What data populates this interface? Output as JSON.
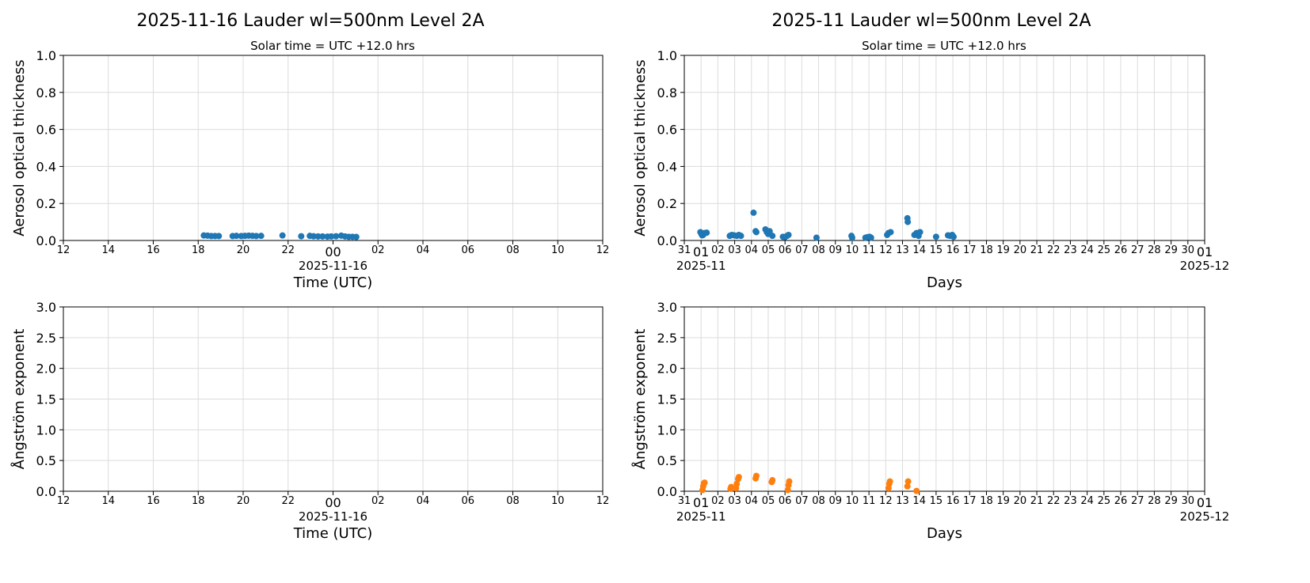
{
  "chart_data": [
    {
      "type": "scatter",
      "title": "2025-11-16  Lauder  wl=500nm  Level 2A",
      "subtitle": "Solar time = UTC +12.0 hrs",
      "xlabel": "Time (UTC)",
      "ylabel": "Aerosol optical thickness",
      "xlim": [
        "2025-11-15 12:00",
        "2025-11-16 12:00"
      ],
      "ylim": [
        0,
        1.0
      ],
      "yticks": [
        "0.0",
        "0.2",
        "0.4",
        "0.6",
        "0.8",
        "1.0"
      ],
      "xticklabels": [
        "12",
        "14",
        "16",
        "18",
        "20",
        "22",
        "00",
        "02",
        "04",
        "06",
        "08",
        "10",
        "12"
      ],
      "xdate_label": "2025-11-16",
      "grid": true,
      "color": "#1f77b4",
      "points": [
        [
          "2025-11-15 18:15",
          0.027
        ],
        [
          "2025-11-15 18:25",
          0.026
        ],
        [
          "2025-11-15 18:35",
          0.024
        ],
        [
          "2025-11-15 18:45",
          0.024
        ],
        [
          "2025-11-15 18:55",
          0.024
        ],
        [
          "2025-11-15 19:32",
          0.024
        ],
        [
          "2025-11-15 19:42",
          0.025
        ],
        [
          "2025-11-15 19:55",
          0.024
        ],
        [
          "2025-11-15 20:05",
          0.025
        ],
        [
          "2025-11-15 20:15",
          0.026
        ],
        [
          "2025-11-15 20:25",
          0.025
        ],
        [
          "2025-11-15 20:35",
          0.024
        ],
        [
          "2025-11-15 20:48",
          0.025
        ],
        [
          "2025-11-15 21:45",
          0.027
        ],
        [
          "2025-11-15 22:35",
          0.023
        ],
        [
          "2025-11-15 22:58",
          0.025
        ],
        [
          "2025-11-15 23:08",
          0.023
        ],
        [
          "2025-11-15 23:20",
          0.022
        ],
        [
          "2025-11-15 23:32",
          0.022
        ],
        [
          "2025-11-15 23:45",
          0.021
        ],
        [
          "2025-11-15 23:55",
          0.022
        ],
        [
          "2025-11-16 00:08",
          0.023
        ],
        [
          "2025-11-16 00:22",
          0.026
        ],
        [
          "2025-11-16 00:32",
          0.022
        ],
        [
          "2025-11-16 00:42",
          0.02
        ],
        [
          "2025-11-16 00:52",
          0.02
        ],
        [
          "2025-11-16 01:02",
          0.019
        ]
      ]
    },
    {
      "type": "scatter",
      "title": "2025-11  Lauder  wl=500nm  Level 2A",
      "subtitle": "Solar time = UTC +12.0 hrs",
      "xlabel": "Days",
      "ylabel": "Aerosol optical thickness",
      "xlim": [
        "2025-10-31 00:00",
        "2025-12-01 00:00"
      ],
      "ylim": [
        0,
        1.0
      ],
      "yticks": [
        "0.0",
        "0.2",
        "0.4",
        "0.6",
        "0.8",
        "1.0"
      ],
      "xticklabels": [
        "31",
        "01",
        "02",
        "03",
        "04",
        "05",
        "06",
        "07",
        "08",
        "09",
        "10",
        "11",
        "12",
        "13",
        "14",
        "15",
        "16",
        "17",
        "18",
        "19",
        "20",
        "21",
        "22",
        "23",
        "24",
        "25",
        "26",
        "27",
        "28",
        "29",
        "30",
        "01"
      ],
      "xmonth_labels": [
        "2025-11",
        "2025-12"
      ],
      "grid": true,
      "color": "#1f77b4",
      "points": [
        [
          "2025-10-31 23:00",
          0.045
        ],
        [
          "2025-11-01 00:30",
          0.035
        ],
        [
          "2025-11-01 01:30",
          0.028
        ],
        [
          "2025-11-01 03:00",
          0.03
        ],
        [
          "2025-11-01 05:00",
          0.04
        ],
        [
          "2025-11-01 08:00",
          0.042
        ],
        [
          "2025-11-02 17:00",
          0.025
        ],
        [
          "2025-11-02 20:00",
          0.03
        ],
        [
          "2025-11-02 23:00",
          0.028
        ],
        [
          "2025-11-03 03:00",
          0.025
        ],
        [
          "2025-11-03 06:00",
          0.03
        ],
        [
          "2025-11-03 09:00",
          0.025
        ],
        [
          "2025-11-04 03:00",
          0.15
        ],
        [
          "2025-11-04 06:00",
          0.05
        ],
        [
          "2025-11-04 07:00",
          0.045
        ],
        [
          "2025-11-04 20:00",
          0.06
        ],
        [
          "2025-11-04 22:00",
          0.045
        ],
        [
          "2025-11-05 00:00",
          0.035
        ],
        [
          "2025-11-05 02:00",
          0.05
        ],
        [
          "2025-11-05 06:00",
          0.025
        ],
        [
          "2025-11-05 21:00",
          0.02
        ],
        [
          "2025-11-06 00:00",
          0.018
        ],
        [
          "2025-11-06 03:00",
          0.025
        ],
        [
          "2025-11-06 05:00",
          0.03
        ],
        [
          "2025-11-07 21:00",
          0.015
        ],
        [
          "2025-11-09 23:00",
          0.025
        ],
        [
          "2025-11-10 00:00",
          0.015
        ],
        [
          "2025-11-10 19:00",
          0.015
        ],
        [
          "2025-11-10 22:00",
          0.018
        ],
        [
          "2025-11-11 01:00",
          0.02
        ],
        [
          "2025-11-11 03:00",
          0.015
        ],
        [
          "2025-11-12 02:00",
          0.03
        ],
        [
          "2025-11-12 04:00",
          0.04
        ],
        [
          "2025-11-12 07:00",
          0.045
        ],
        [
          "2025-11-13 07:00",
          0.12
        ],
        [
          "2025-11-13 07:30",
          0.1
        ],
        [
          "2025-11-13 17:00",
          0.03
        ],
        [
          "2025-11-13 20:00",
          0.04
        ],
        [
          "2025-11-13 23:00",
          0.025
        ],
        [
          "2025-11-14 01:00",
          0.045
        ],
        [
          "2025-11-15 00:00",
          0.02
        ],
        [
          "2025-11-15 17:00",
          0.028
        ],
        [
          "2025-11-15 20:00",
          0.025
        ],
        [
          "2025-11-15 23:00",
          0.03
        ],
        [
          "2025-11-16 01:00",
          0.02
        ]
      ]
    },
    {
      "type": "scatter",
      "xlabel": "Time (UTC)",
      "ylabel": "Ångström exponent",
      "xlim": [
        "2025-11-15 12:00",
        "2025-11-16 12:00"
      ],
      "ylim": [
        0,
        3.0
      ],
      "yticks": [
        "0.0",
        "0.5",
        "1.0",
        "1.5",
        "2.0",
        "2.5",
        "3.0"
      ],
      "xticklabels": [
        "12",
        "14",
        "16",
        "18",
        "20",
        "22",
        "00",
        "02",
        "04",
        "06",
        "08",
        "10",
        "12"
      ],
      "xdate_label": "2025-11-16",
      "grid": true,
      "color": "#ff7f0e",
      "points": []
    },
    {
      "type": "scatter",
      "xlabel": "Days",
      "ylabel": "Ångström exponent",
      "xlim": [
        "2025-10-31 00:00",
        "2025-12-01 00:00"
      ],
      "ylim": [
        0,
        3.0
      ],
      "yticks": [
        "0.0",
        "0.5",
        "1.0",
        "1.5",
        "2.0",
        "2.5",
        "3.0"
      ],
      "xticklabels": [
        "31",
        "01",
        "02",
        "03",
        "04",
        "05",
        "06",
        "07",
        "08",
        "09",
        "10",
        "11",
        "12",
        "13",
        "14",
        "15",
        "16",
        "17",
        "18",
        "19",
        "20",
        "21",
        "22",
        "23",
        "24",
        "25",
        "26",
        "27",
        "28",
        "29",
        "30",
        "01"
      ],
      "xmonth_labels": [
        "2025-11",
        "2025-12"
      ],
      "grid": true,
      "color": "#ff7f0e",
      "points": [
        [
          "2025-11-01 02:00",
          0.02
        ],
        [
          "2025-11-01 03:00",
          0.08
        ],
        [
          "2025-11-01 04:00",
          0.13
        ],
        [
          "2025-11-01 05:00",
          0.14
        ],
        [
          "2025-11-02 18:00",
          0.04
        ],
        [
          "2025-11-02 19:00",
          0.07
        ],
        [
          "2025-11-03 02:00",
          0.05
        ],
        [
          "2025-11-03 03:00",
          0.12
        ],
        [
          "2025-11-03 05:00",
          0.2
        ],
        [
          "2025-11-03 06:00",
          0.23
        ],
        [
          "2025-11-04 06:00",
          0.21
        ],
        [
          "2025-11-04 07:00",
          0.25
        ],
        [
          "2025-11-05 05:00",
          0.15
        ],
        [
          "2025-11-05 06:00",
          0.18
        ],
        [
          "2025-11-06 04:00",
          0.02
        ],
        [
          "2025-11-06 05:00",
          0.1
        ],
        [
          "2025-11-06 06:00",
          0.16
        ],
        [
          "2025-11-12 04:00",
          0.05
        ],
        [
          "2025-11-12 05:00",
          0.12
        ],
        [
          "2025-11-12 06:00",
          0.16
        ],
        [
          "2025-11-13 07:00",
          0.08
        ],
        [
          "2025-11-13 08:00",
          0.16
        ],
        [
          "2025-11-13 20:00",
          0.005
        ]
      ]
    }
  ]
}
